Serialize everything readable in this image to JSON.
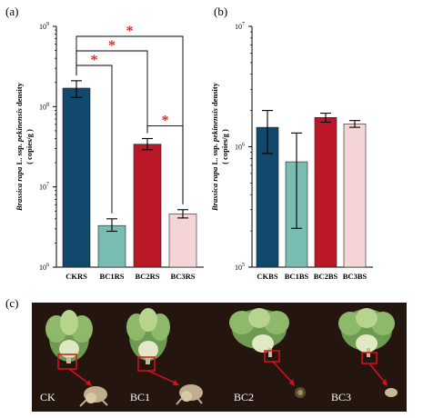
{
  "panels": {
    "a": {
      "label": "(a)"
    },
    "b": {
      "label": "(b)"
    },
    "c": {
      "label": "(c)",
      "photo_labels": [
        "CK",
        "BC1",
        "BC2",
        "BC3"
      ],
      "bg_color": "#24160f",
      "marker_color": "#d8101a"
    }
  },
  "chart_data": [
    {
      "type": "bar",
      "panel": "(a)",
      "ylabel_italic": "Brassica rapa",
      "ylabel_mid": " L. ssp. ",
      "ylabel_italic2": "pekinensis",
      "ylabel_end": " density",
      "ylabel_unit": "( copies/g )",
      "yscale": "log",
      "ylim": [
        1000000,
        1000000000
      ],
      "yticks": [
        {
          "value": 1000000,
          "base": "10",
          "exp": "6"
        },
        {
          "value": 10000000,
          "base": "10",
          "exp": "7"
        },
        {
          "value": 100000000,
          "base": "10",
          "exp": "8"
        },
        {
          "value": 1000000000,
          "base": "10",
          "exp": "9"
        }
      ],
      "categories": [
        "CKRS",
        "BC1RS",
        "BC2RS",
        "BC3RS"
      ],
      "values": [
        170000000,
        3300000,
        34000000,
        4600000
      ],
      "err_low": [
        130000000,
        2800000,
        29000000,
        4100000
      ],
      "err_high": [
        210000000,
        4000000,
        40000000,
        5200000
      ],
      "colors": [
        "#12486b",
        "#78bcb4",
        "#bb1827",
        "#f4d4d6"
      ],
      "significance": [
        {
          "from": 0,
          "to": 3,
          "label": "*"
        },
        {
          "from": 0,
          "to": 2,
          "label": "*"
        },
        {
          "from": 0,
          "to": 1,
          "label": "*"
        },
        {
          "from": 2,
          "to": 3,
          "label": "*"
        }
      ],
      "sig_color": "#d42d2a"
    },
    {
      "type": "bar",
      "panel": "(b)",
      "ylabel_italic": "Brassica rapa",
      "ylabel_mid": " L. ssp. ",
      "ylabel_italic2": "pekinensis",
      "ylabel_end": " density",
      "ylabel_unit": "( copies/g )",
      "yscale": "log",
      "ylim": [
        100000,
        10000000
      ],
      "yticks": [
        {
          "value": 100000,
          "base": "10",
          "exp": "5"
        },
        {
          "value": 1000000,
          "base": "10",
          "exp": "6"
        },
        {
          "value": 10000000,
          "base": "10",
          "exp": "7"
        }
      ],
      "categories": [
        "CKBS",
        "BC1BS",
        "BC2BS",
        "BC3BS"
      ],
      "values": [
        1450000,
        750000,
        1750000,
        1550000
      ],
      "err_low": [
        880000,
        210000,
        1600000,
        1450000
      ],
      "err_high": [
        2000000,
        1300000,
        1900000,
        1650000
      ],
      "colors": [
        "#12486b",
        "#78bcb4",
        "#bb1827",
        "#f4d4d6"
      ],
      "significance": []
    }
  ]
}
